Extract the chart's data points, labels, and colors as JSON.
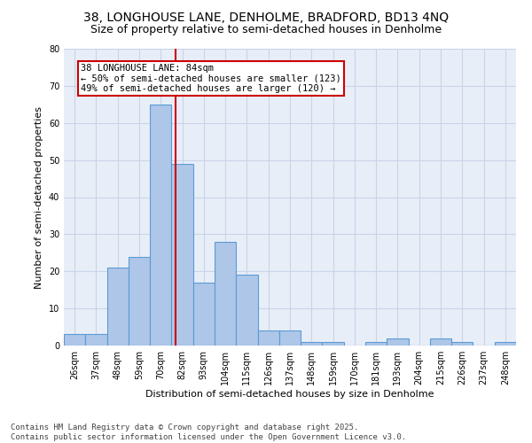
{
  "title_line1": "38, LONGHOUSE LANE, DENHOLME, BRADFORD, BD13 4NQ",
  "title_line2": "Size of property relative to semi-detached houses in Denholme",
  "xlabel": "Distribution of semi-detached houses by size in Denholme",
  "ylabel": "Number of semi-detached properties",
  "categories": [
    "26sqm",
    "37sqm",
    "48sqm",
    "59sqm",
    "70sqm",
    "82sqm",
    "93sqm",
    "104sqm",
    "115sqm",
    "126sqm",
    "137sqm",
    "148sqm",
    "159sqm",
    "170sqm",
    "181sqm",
    "193sqm",
    "204sqm",
    "215sqm",
    "226sqm",
    "237sqm",
    "248sqm"
  ],
  "values": [
    3,
    3,
    21,
    24,
    65,
    49,
    17,
    28,
    19,
    4,
    4,
    1,
    1,
    0,
    1,
    2,
    0,
    2,
    1,
    0,
    1
  ],
  "bar_color": "#aec6e8",
  "bar_edge_color": "#5a9bd5",
  "annotation_title": "38 LONGHOUSE LANE: 84sqm",
  "annotation_line1": "← 50% of semi-detached houses are smaller (123)",
  "annotation_line2": "49% of semi-detached houses are larger (120) →",
  "annotation_box_color": "#ffffff",
  "annotation_box_edge_color": "#cc0000",
  "vline_color": "#cc0000",
  "ylim": [
    0,
    80
  ],
  "yticks": [
    0,
    10,
    20,
    30,
    40,
    50,
    60,
    70,
    80
  ],
  "grid_color": "#c8d4e8",
  "background_color": "#e8eef8",
  "footer_line1": "Contains HM Land Registry data © Crown copyright and database right 2025.",
  "footer_line2": "Contains public sector information licensed under the Open Government Licence v3.0.",
  "title_fontsize": 10,
  "subtitle_fontsize": 9,
  "axis_label_fontsize": 8,
  "tick_fontsize": 7,
  "annotation_fontsize": 7.5,
  "footer_fontsize": 6.5
}
